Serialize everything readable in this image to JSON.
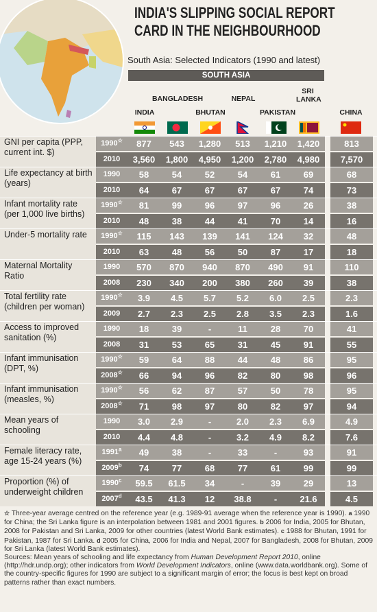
{
  "header": {
    "title": [
      "INDIA'S SLIPPING SOCIAL REPORT",
      "CARD IN THE NEIGHBOURHOOD"
    ],
    "subtitle": "South Asia: Selected Indicators (1990 and latest)",
    "group": "SOUTH ASIA"
  },
  "table": {
    "columns": [
      "INDIA",
      "BANGLADESH",
      "BHUTAN",
      "NEPAL",
      "PAKISTAN",
      "SRI LANKA",
      "CHINA"
    ],
    "rows": [
      {
        "indicator": "GNI per capita (PPP, current int. $)",
        "data": [
          {
            "year": "1990",
            "note": "☆",
            "values": [
              "877",
              "543",
              "1,280",
              "513",
              "1,210",
              "1,420",
              "813"
            ]
          },
          {
            "year": "2010",
            "values": [
              "3,560",
              "1,800",
              "4,950",
              "1,200",
              "2,780",
              "4,980",
              "7,570"
            ]
          }
        ]
      },
      {
        "indicator": "Life expectancy at birth (years)",
        "data": [
          {
            "year": "1990",
            "values": [
              "58",
              "54",
              "52",
              "54",
              "61",
              "69",
              "68"
            ]
          },
          {
            "year": "2010",
            "values": [
              "64",
              "67",
              "67",
              "67",
              "67",
              "74",
              "73"
            ]
          }
        ]
      },
      {
        "indicator": "Infant mortality rate (per 1,000 live births)",
        "data": [
          {
            "year": "1990",
            "note": "☆",
            "values": [
              "81",
              "99",
              "96",
              "97",
              "96",
              "26",
              "38"
            ]
          },
          {
            "year": "2010",
            "values": [
              "48",
              "38",
              "44",
              "41",
              "70",
              "14",
              "16"
            ]
          }
        ]
      },
      {
        "indicator": "Under-5 mortality rate",
        "data": [
          {
            "year": "1990",
            "note": "☆",
            "values": [
              "115",
              "143",
              "139",
              "141",
              "124",
              "32",
              "48"
            ]
          },
          {
            "year": "2010",
            "values": [
              "63",
              "48",
              "56",
              "50",
              "87",
              "17",
              "18"
            ]
          }
        ]
      },
      {
        "indicator": "Maternal Mortality Ratio",
        "data": [
          {
            "year": "1990",
            "values": [
              "570",
              "870",
              "940",
              "870",
              "490",
              "91",
              "110"
            ]
          },
          {
            "year": "2008",
            "values": [
              "230",
              "340",
              "200",
              "380",
              "260",
              "39",
              "38"
            ]
          }
        ]
      },
      {
        "indicator": "Total fertility rate (children per woman)",
        "data": [
          {
            "year": "1990",
            "note": "☆",
            "values": [
              "3.9",
              "4.5",
              "5.7",
              "5.2",
              "6.0",
              "2.5",
              "2.3"
            ]
          },
          {
            "year": "2009",
            "values": [
              "2.7",
              "2.3",
              "2.5",
              "2.8",
              "3.5",
              "2.3",
              "1.6"
            ]
          }
        ]
      },
      {
        "indicator": "Access to improved sanitation (%)",
        "data": [
          {
            "year": "1990",
            "values": [
              "18",
              "39",
              "-",
              "11",
              "28",
              "70",
              "41"
            ]
          },
          {
            "year": "2008",
            "values": [
              "31",
              "53",
              "65",
              "31",
              "45",
              "91",
              "55"
            ]
          }
        ]
      },
      {
        "indicator": "Infant immunisation (DPT, %)",
        "data": [
          {
            "year": "1990",
            "note": "☆",
            "values": [
              "59",
              "64",
              "88",
              "44",
              "48",
              "86",
              "95"
            ]
          },
          {
            "year": "2008",
            "note": "☆",
            "values": [
              "66",
              "94",
              "96",
              "82",
              "80",
              "98",
              "96"
            ]
          }
        ]
      },
      {
        "indicator": "Infant immunisation (measles, %)",
        "data": [
          {
            "year": "1990",
            "note": "☆",
            "values": [
              "56",
              "62",
              "87",
              "57",
              "50",
              "78",
              "95"
            ]
          },
          {
            "year": "2008",
            "note": "☆",
            "values": [
              "71",
              "98",
              "97",
              "80",
              "82",
              "97",
              "94"
            ]
          }
        ]
      },
      {
        "indicator": "Mean years of schooling",
        "data": [
          {
            "year": "1990",
            "values": [
              "3.0",
              "2.9",
              "-",
              "2.0",
              "2.3",
              "6.9",
              "4.9"
            ]
          },
          {
            "year": "2010",
            "values": [
              "4.4",
              "4.8",
              "-",
              "3.2",
              "4.9",
              "8.2",
              "7.6"
            ]
          }
        ]
      },
      {
        "indicator": "Female literacy rate, age 15-24 years (%)",
        "data": [
          {
            "year": "1991",
            "note": "a",
            "values": [
              "49",
              "38",
              "-",
              "33",
              "-",
              "93",
              "91"
            ]
          },
          {
            "year": "2009",
            "note": "b",
            "values": [
              "74",
              "77",
              "68",
              "77",
              "61",
              "99",
              "99"
            ]
          }
        ]
      },
      {
        "indicator": "Proportion (%) of underweight children",
        "data": [
          {
            "year": "1990",
            "note": "c",
            "values": [
              "59.5",
              "61.5",
              "34",
              "-",
              "39",
              "29",
              "13"
            ]
          },
          {
            "year": "2007",
            "note": "d",
            "values": [
              "43.5",
              "41.3",
              "12",
              "38.8",
              "-",
              "21.6",
              "4.5"
            ]
          }
        ]
      }
    ]
  },
  "footnotes": [
    {
      "mark": "☆",
      "text": "Three-year average centred on the reference year (e.g. 1989-91 average when the reference year is 1990)."
    },
    {
      "mark": "a",
      "text": "1990 for China; the Sri Lanka figure is an interpolation between 1981 and 2001 figures."
    },
    {
      "mark": "b",
      "text": "2006 for India, 2005 for Bhutan, 2008 for Pakistan and Sri Lanka, 2009 for other countries (latest World Bank estimates)."
    },
    {
      "mark": "c",
      "text": "1988 for Bhutan, 1991 for Pakistan, 1987 for Sri Lanka."
    },
    {
      "mark": "d",
      "text": "2005 for China, 2006 for India and Nepal, 2007 for Bangladesh, 2008 for Bhutan, 2009 for Sri Lanka (latest World Bank estimates)."
    }
  ],
  "sources": [
    "Sources: Mean years of schooling and life expectancy from ",
    "Human Development Report 2010",
    ", online (http://hdr.undp.org); other indicators from ",
    "World Development Indicators",
    ", online (www.data.worldbank.org). Some of the country-specific figures for 1990 are subject to a significant margin of error; the focus is best kept on broad patterns rather than exact numbers."
  ]
}
